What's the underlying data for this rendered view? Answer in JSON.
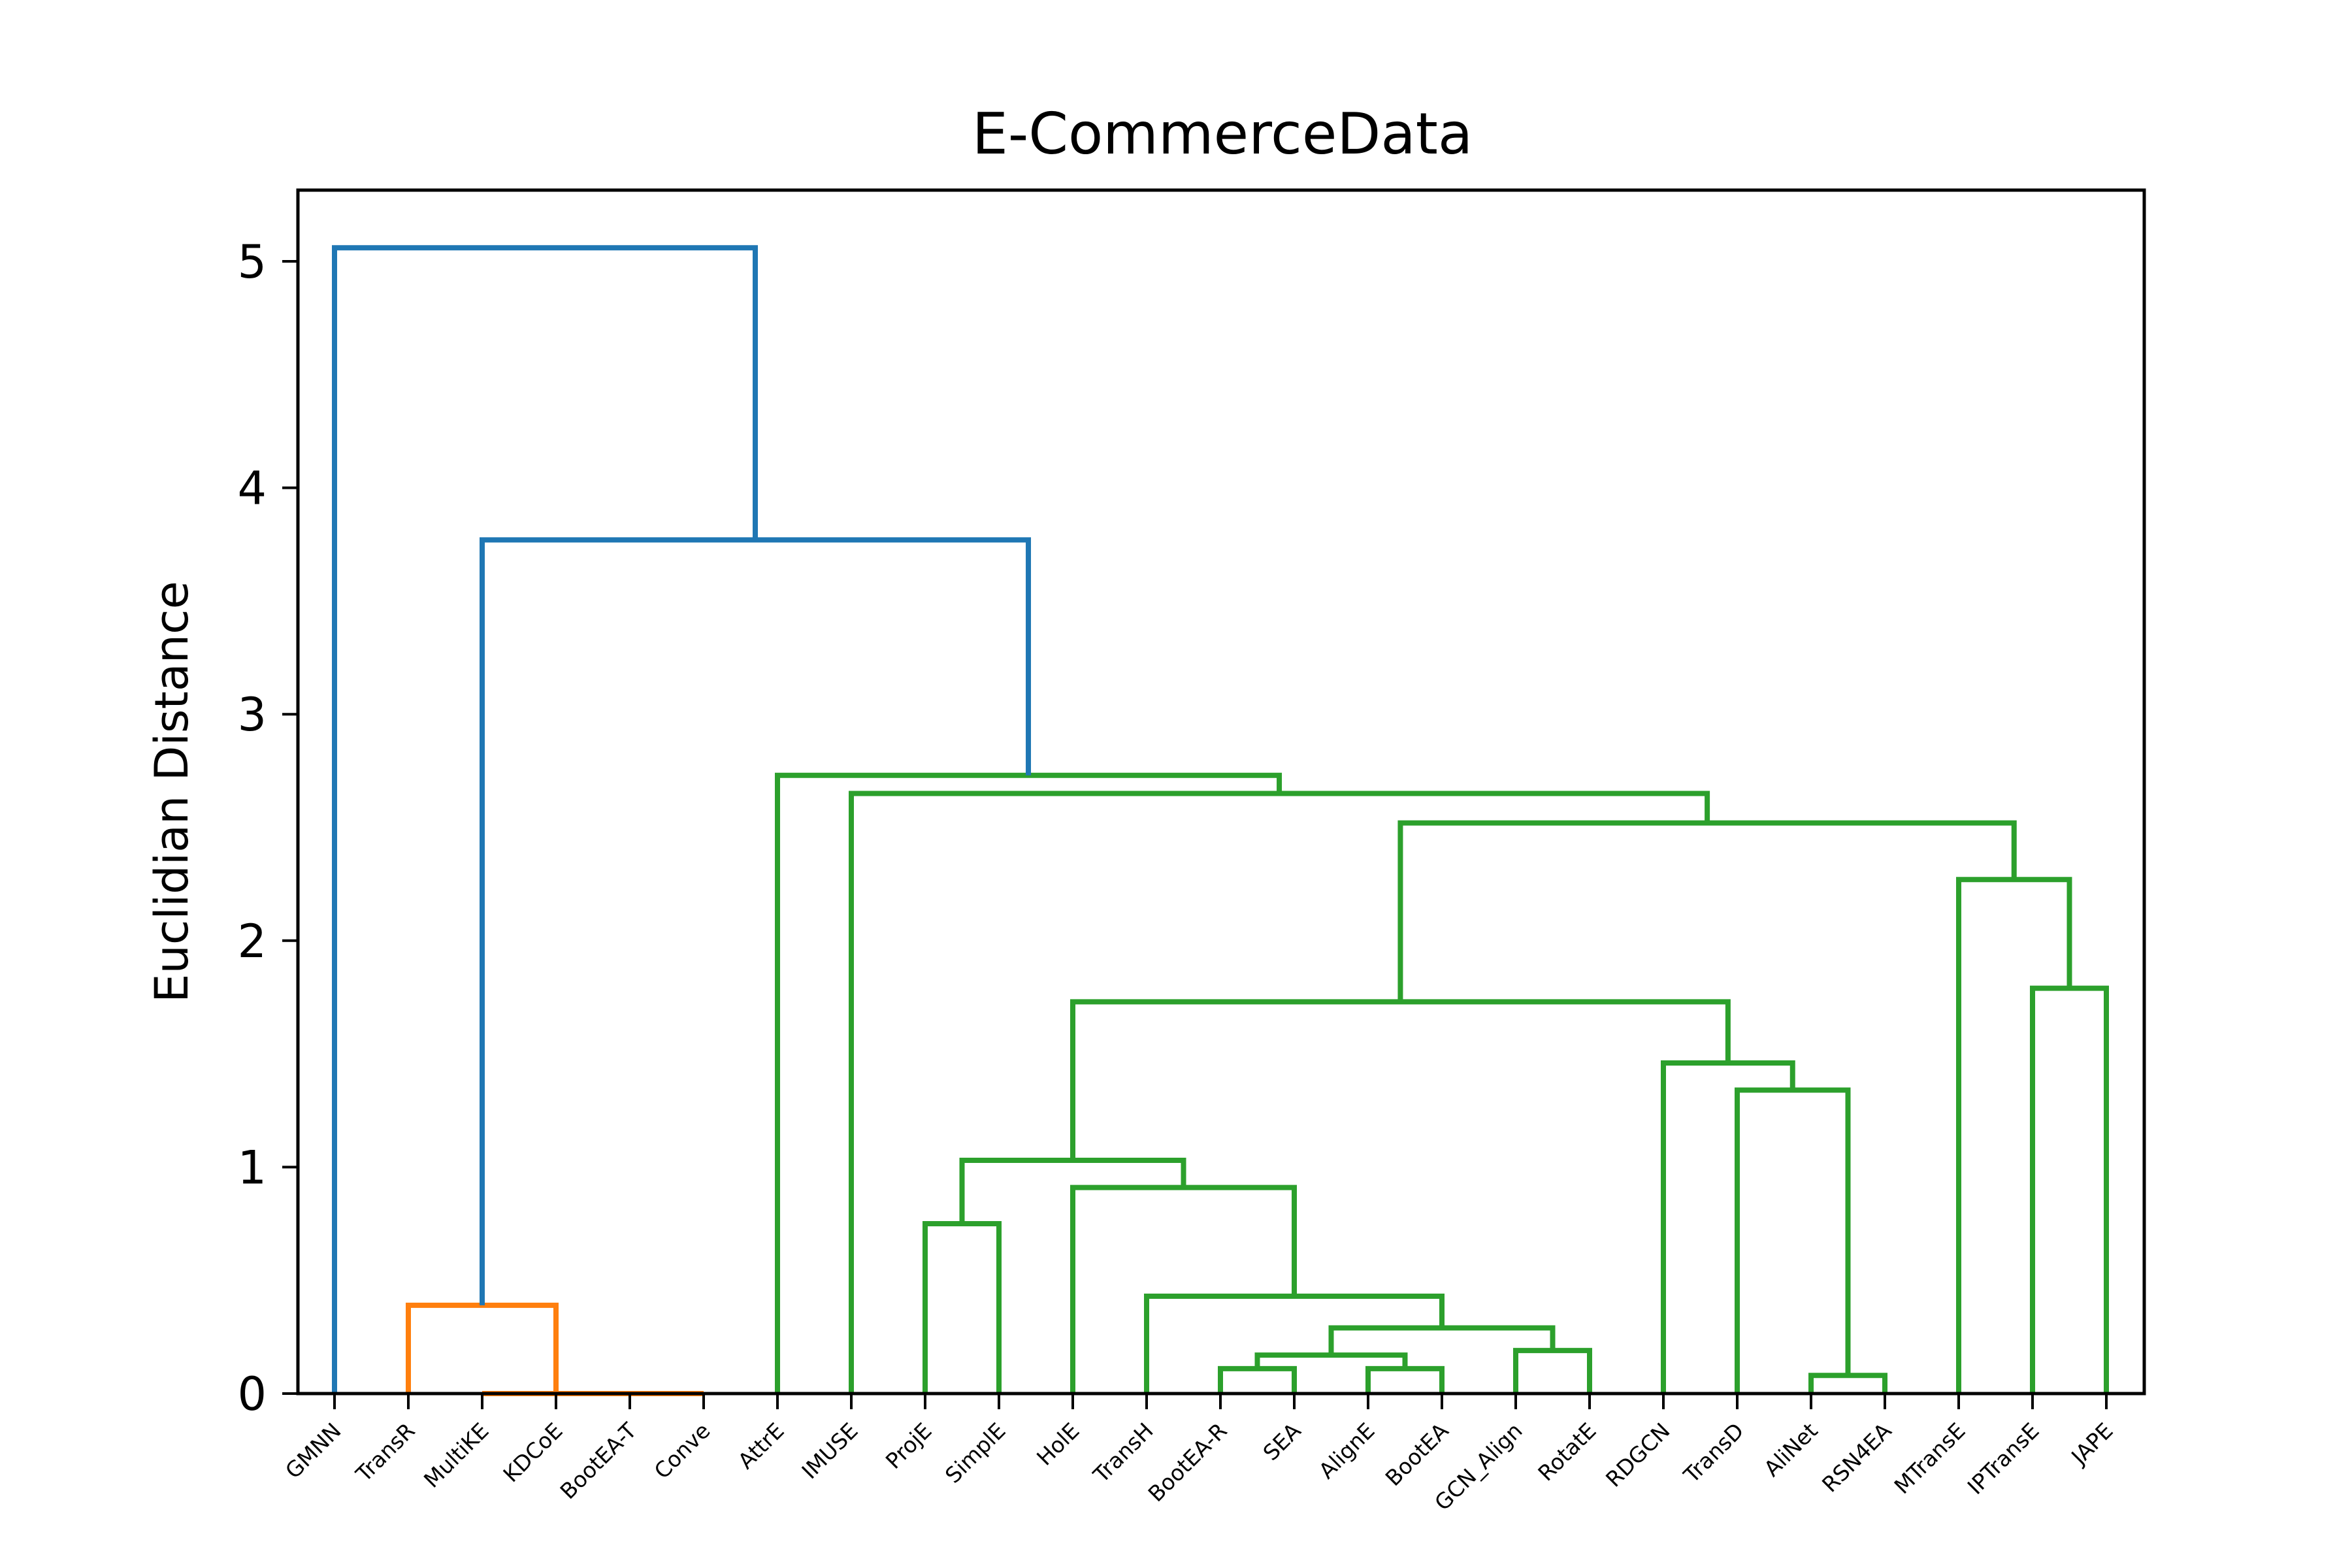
{
  "chart_data": {
    "type": "dendrogram",
    "title": "E-CommerceData",
    "ylabel": "Euclidian Distance",
    "xlabel": "",
    "ylim": [
      0,
      5.3
    ],
    "yticks": [
      0,
      1,
      2,
      3,
      4,
      5
    ],
    "grid": false,
    "leaves": [
      "GMNN",
      "TransR",
      "MultiKE",
      "KDCoE",
      "BootEA-T",
      "Conve",
      "AttrE",
      "IMUSE",
      "ProjE",
      "SimplE",
      "HolE",
      "TransH",
      "BootEA-R",
      "SEA",
      "AlignE",
      "BootEA",
      "GCN_Align",
      "RotatE",
      "RDGCN",
      "TransD",
      "AliNet",
      "RSN4EA",
      "MTransE",
      "IPTransE",
      "JAPE"
    ],
    "colors": {
      "root": "#1f77b4",
      "cluster_a": "#ff7f0e",
      "cluster_b": "#2ca02c"
    },
    "links": [
      {
        "left": 2.0,
        "right": 2.0,
        "left_h": 0.0,
        "right_h": 0.0,
        "height": 0.0,
        "color": "cluster_a"
      },
      {
        "left": 3.0,
        "right": 5.0,
        "left_h": 0.0,
        "right_h": 0.0,
        "height": 0.0,
        "color": "cluster_a"
      },
      {
        "left": 2.0,
        "right": 4.0,
        "left_h": 0.0,
        "right_h": 0.0,
        "height": 0.0,
        "color": "cluster_a"
      },
      {
        "left": 1.0,
        "right": 3.0,
        "left_h": 0.0,
        "right_h": 0.0,
        "height": 0.39,
        "color": "cluster_a"
      },
      {
        "left": 12.0,
        "right": 13.0,
        "left_h": 0.0,
        "right_h": 0.0,
        "height": 0.11,
        "color": "cluster_b"
      },
      {
        "left": 14.0,
        "right": 15.0,
        "left_h": 0.0,
        "right_h": 0.0,
        "height": 0.11,
        "color": "cluster_b"
      },
      {
        "left": 12.5,
        "right": 14.5,
        "left_h": 0.11,
        "right_h": 0.11,
        "height": 0.17,
        "color": "cluster_b"
      },
      {
        "left": 16.0,
        "right": 17.0,
        "left_h": 0.0,
        "right_h": 0.0,
        "height": 0.19,
        "color": "cluster_b"
      },
      {
        "left": 13.5,
        "right": 16.5,
        "left_h": 0.17,
        "right_h": 0.19,
        "height": 0.29,
        "color": "cluster_b"
      },
      {
        "left": 11.0,
        "right": 15.0,
        "left_h": 0.0,
        "right_h": 0.29,
        "height": 0.43,
        "color": "cluster_b"
      },
      {
        "left": 10.0,
        "right": 13.0,
        "left_h": 0.0,
        "right_h": 0.43,
        "height": 0.91,
        "color": "cluster_b"
      },
      {
        "left": 8.0,
        "right": 9.0,
        "left_h": 0.0,
        "right_h": 0.0,
        "height": 0.75,
        "color": "cluster_b"
      },
      {
        "left": 8.5,
        "right": 11.5,
        "left_h": 0.75,
        "right_h": 0.91,
        "height": 1.03,
        "color": "cluster_b"
      },
      {
        "left": 20.0,
        "right": 21.0,
        "left_h": 0.0,
        "right_h": 0.0,
        "height": 0.08,
        "color": "cluster_b"
      },
      {
        "left": 19.0,
        "right": 20.5,
        "left_h": 0.0,
        "right_h": 0.08,
        "height": 1.34,
        "color": "cluster_b"
      },
      {
        "left": 18.0,
        "right": 19.75,
        "left_h": 0.0,
        "right_h": 1.34,
        "height": 1.46,
        "color": "cluster_b"
      },
      {
        "left": 10.0,
        "right": 18.875,
        "left_h": 1.03,
        "right_h": 1.46,
        "height": 1.73,
        "color": "cluster_b"
      },
      {
        "left": 23.0,
        "right": 24.0,
        "left_h": 0.0,
        "right_h": 0.0,
        "height": 1.79,
        "color": "cluster_b"
      },
      {
        "left": 22.0,
        "right": 23.5,
        "left_h": 0.0,
        "right_h": 1.79,
        "height": 2.27,
        "color": "cluster_b"
      },
      {
        "left": 14.4375,
        "right": 22.75,
        "left_h": 1.73,
        "right_h": 2.27,
        "height": 2.52,
        "color": "cluster_b"
      },
      {
        "left": 7.0,
        "right": 18.59375,
        "left_h": 0.0,
        "right_h": 2.52,
        "height": 2.65,
        "color": "cluster_b"
      },
      {
        "left": 6.0,
        "right": 12.796875,
        "left_h": 0.0,
        "right_h": 2.65,
        "height": 2.73,
        "color": "cluster_b"
      },
      {
        "left": 2.0,
        "right": 9.3984375,
        "left_h": 0.39,
        "right_h": 2.73,
        "height": 3.77,
        "color": "root"
      },
      {
        "left": 0.0,
        "right": 5.69921875,
        "left_h": 0.0,
        "right_h": 3.77,
        "height": 5.06,
        "color": "root"
      }
    ]
  }
}
